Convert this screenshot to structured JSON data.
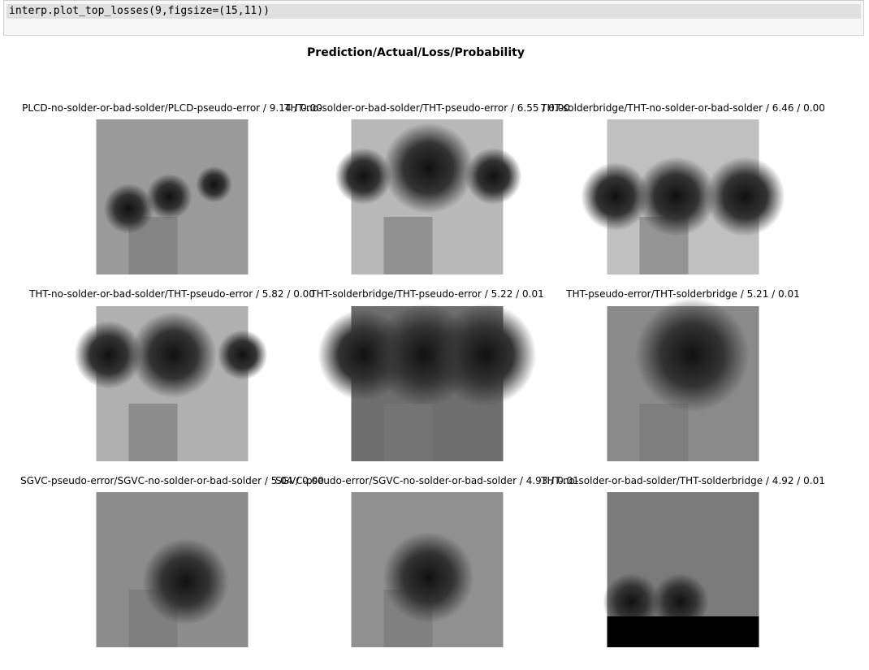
{
  "code_cell": {
    "source": "interp.plot_top_losses(9,figsize=(15,11))"
  },
  "figure": {
    "title": "Prediction/Actual/Loss/Probability",
    "panels": [
      {
        "title": "PLCD-no-solder-or-bad-solder/PLCD-pseudo-error / 9.14 / 0.00"
      },
      {
        "title": "THT-no-solder-or-bad-solder/THT-pseudo-error / 6.55 / 0.00"
      },
      {
        "title": "THT-solderbridge/THT-no-solder-or-bad-solder / 6.46 / 0.00"
      },
      {
        "title": "THT-no-solder-or-bad-solder/THT-pseudo-error / 5.82 / 0.00"
      },
      {
        "title": "THT-solderbridge/THT-pseudo-error / 5.22 / 0.01"
      },
      {
        "title": "THT-pseudo-error/THT-solderbridge / 5.21 / 0.01"
      },
      {
        "title": "SGVC-pseudo-error/SGVC-no-solder-or-bad-solder / 5.04 / 0.00"
      },
      {
        "title": "SGVC-pseudo-error/SGVC-no-solder-or-bad-solder / 4.93 / 0.01"
      },
      {
        "title": "THT-no-solder-or-bad-solder/THT-solderbridge / 4.92 / 0.01"
      }
    ]
  }
}
